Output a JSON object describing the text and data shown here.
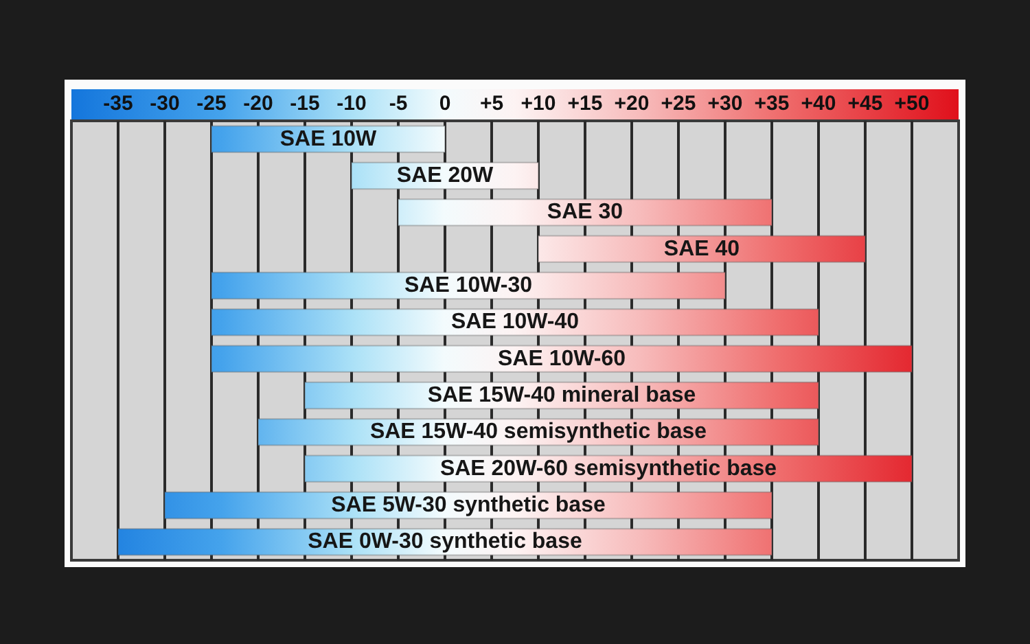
{
  "chart_data": {
    "type": "bar",
    "orientation": "horizontal",
    "categories": [
      "SAE 10W",
      "SAE 20W",
      "SAE 30",
      "SAE 40",
      "SAE 10W-30",
      "SAE 10W-40",
      "SAE 10W-60",
      "SAE 15W-40 mineral base",
      "SAE 15W-40 semisynthetic base",
      "SAE 20W-60 semisynthetic base",
      "SAE 5W-30 synthetic base",
      "SAE 0W-30 synthetic base"
    ],
    "base": [
      -25,
      -10,
      -5,
      10,
      -25,
      -25,
      -25,
      -15,
      -20,
      -15,
      -30,
      -35
    ],
    "values": [
      25,
      20,
      40,
      35,
      55,
      65,
      75,
      55,
      60,
      65,
      65,
      70
    ],
    "xlim": [
      -40,
      55
    ],
    "xticks": [
      -35,
      -30,
      -25,
      -20,
      -15,
      -10,
      -5,
      0,
      {
        "value": 5,
        "label": "+5"
      },
      {
        "value": 10,
        "label": "+10"
      },
      {
        "value": 15,
        "label": "+15"
      },
      {
        "value": 20,
        "label": "+20"
      },
      {
        "value": 25,
        "label": "+25"
      },
      {
        "value": 30,
        "label": "+30"
      },
      {
        "value": 35,
        "label": "+35"
      },
      {
        "value": 40,
        "label": "+40"
      },
      {
        "value": 45,
        "label": "+45"
      },
      {
        "value": 50,
        "label": "+50"
      }
    ],
    "grid": "x",
    "tick_labels": "x"
  }
}
